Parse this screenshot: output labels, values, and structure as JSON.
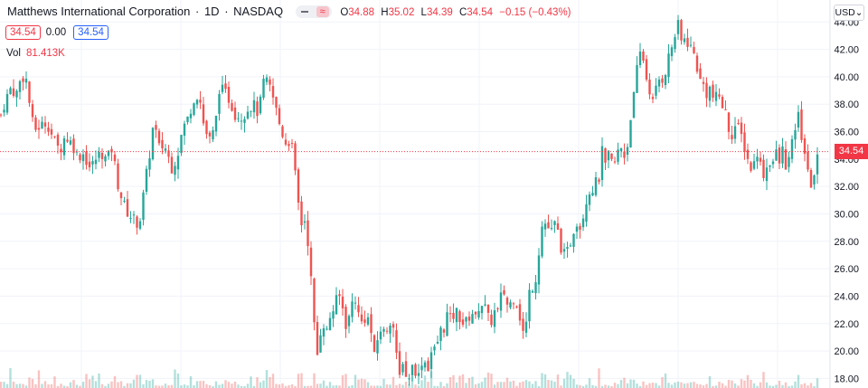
{
  "header": {
    "symbol_title": "Matthews International Corporation",
    "interval": "1D",
    "exchange": "NASDAQ",
    "separator": "·",
    "ohlc": {
      "open_label": "O",
      "open": "34.88",
      "high_label": "H",
      "high": "35.02",
      "low_label": "L",
      "low": "34.39",
      "close_label": "C",
      "close": "34.54",
      "change": "−0.15 (−0.43%)"
    },
    "sell_price": "34.54",
    "spread": "0.00",
    "buy_price": "34.54",
    "volume_label": "Vol",
    "volume_value": "81.413K",
    "currency": "USD"
  },
  "colors": {
    "up": "#26a69a",
    "down": "#ef5350",
    "last_price": "#f23645",
    "grid": "#f0f3fa",
    "axis_text": "#131722"
  },
  "chart_data": {
    "type": "candlestick",
    "title": "Matthews International Corporation · 1D · NASDAQ",
    "y_axis_ticks": [
      "18.00",
      "20.00",
      "22.00",
      "24.00",
      "26.00",
      "28.00",
      "30.00",
      "32.00",
      "34.00",
      "36.00",
      "38.00",
      "40.00",
      "42.00",
      "44.00"
    ],
    "ylim": [
      17.3,
      45.6
    ],
    "last_price": 34.54,
    "last_price_label": "34.54",
    "grid": true,
    "close_path": [
      [
        0,
        37.0
      ],
      [
        6,
        38.3
      ],
      [
        12,
        39.2
      ],
      [
        18,
        38.7
      ],
      [
        24,
        40.1
      ],
      [
        30,
        39.7
      ],
      [
        34,
        37.2
      ],
      [
        38,
        36.1
      ],
      [
        44,
        36.4
      ],
      [
        52,
        36.7
      ],
      [
        60,
        35.3
      ],
      [
        66,
        34.6
      ],
      [
        72,
        35.7
      ],
      [
        80,
        35.1
      ],
      [
        86,
        34.2
      ],
      [
        92,
        34.4
      ],
      [
        100,
        33.3
      ],
      [
        106,
        34.0
      ],
      [
        112,
        34.5
      ],
      [
        118,
        33.9
      ],
      [
        124,
        34.8
      ],
      [
        130,
        32.3
      ],
      [
        136,
        30.8
      ],
      [
        142,
        30.0
      ],
      [
        148,
        29.6
      ],
      [
        154,
        29.2
      ],
      [
        160,
        32.0
      ],
      [
        166,
        34.6
      ],
      [
        170,
        36.7
      ],
      [
        176,
        34.8
      ],
      [
        182,
        35.0
      ],
      [
        190,
        33.4
      ],
      [
        196,
        34.2
      ],
      [
        202,
        36.2
      ],
      [
        208,
        37.0
      ],
      [
        214,
        38.4
      ],
      [
        220,
        38.8
      ],
      [
        226,
        36.2
      ],
      [
        232,
        35.4
      ],
      [
        238,
        36.2
      ],
      [
        242,
        39.2
      ],
      [
        248,
        38.9
      ],
      [
        254,
        38.3
      ],
      [
        260,
        37.3
      ],
      [
        268,
        37.1
      ],
      [
        274,
        37.7
      ],
      [
        280,
        38.0
      ],
      [
        286,
        37.3
      ],
      [
        292,
        39.8
      ],
      [
        298,
        39.3
      ],
      [
        304,
        38.0
      ],
      [
        310,
        36.3
      ],
      [
        316,
        35.2
      ],
      [
        322,
        35.4
      ],
      [
        326,
        33.1
      ],
      [
        330,
        30.7
      ],
      [
        334,
        29.1
      ],
      [
        338,
        29.7
      ],
      [
        342,
        27.0
      ],
      [
        346,
        23.4
      ],
      [
        350,
        19.2
      ],
      [
        354,
        21.4
      ],
      [
        358,
        22.0
      ],
      [
        362,
        21.3
      ],
      [
        366,
        22.9
      ],
      [
        370,
        23.1
      ],
      [
        374,
        24.2
      ],
      [
        378,
        23.5
      ],
      [
        382,
        21.9
      ],
      [
        386,
        22.4
      ],
      [
        390,
        23.7
      ],
      [
        394,
        23.9
      ],
      [
        398,
        21.9
      ],
      [
        402,
        22.3
      ],
      [
        406,
        22.6
      ],
      [
        410,
        21.6
      ],
      [
        414,
        19.5
      ],
      [
        418,
        21.0
      ],
      [
        422,
        21.8
      ],
      [
        426,
        21.1
      ],
      [
        430,
        22.2
      ],
      [
        434,
        22.4
      ],
      [
        438,
        19.7
      ],
      [
        442,
        18.1
      ],
      [
        446,
        19.6
      ],
      [
        450,
        17.6
      ],
      [
        454,
        18.6
      ],
      [
        458,
        19.1
      ],
      [
        462,
        17.8
      ],
      [
        466,
        19.3
      ],
      [
        470,
        19.2
      ],
      [
        474,
        18.8
      ],
      [
        478,
        20.3
      ],
      [
        482,
        19.9
      ],
      [
        486,
        21.5
      ],
      [
        490,
        21.4
      ],
      [
        494,
        22.7
      ],
      [
        498,
        22.3
      ],
      [
        502,
        22.6
      ],
      [
        506,
        22.9
      ],
      [
        510,
        22.2
      ],
      [
        514,
        21.9
      ],
      [
        518,
        22.4
      ],
      [
        522,
        22.9
      ],
      [
        526,
        22.3
      ],
      [
        530,
        23.4
      ],
      [
        534,
        23.5
      ],
      [
        538,
        22.9
      ],
      [
        542,
        21.8
      ],
      [
        546,
        22.9
      ],
      [
        550,
        22.7
      ],
      [
        554,
        23.9
      ],
      [
        558,
        24.3
      ],
      [
        562,
        23.1
      ],
      [
        566,
        23.7
      ],
      [
        570,
        24.0
      ],
      [
        574,
        22.9
      ],
      [
        578,
        21.3
      ],
      [
        582,
        22.0
      ],
      [
        586,
        24.6
      ],
      [
        590,
        24.8
      ],
      [
        594,
        25.7
      ],
      [
        598,
        28.9
      ],
      [
        602,
        29.4
      ],
      [
        606,
        29.0
      ],
      [
        610,
        28.7
      ],
      [
        614,
        29.3
      ],
      [
        618,
        28.4
      ],
      [
        622,
        27.1
      ],
      [
        626,
        26.9
      ],
      [
        630,
        27.7
      ],
      [
        634,
        28.8
      ],
      [
        638,
        29.5
      ],
      [
        642,
        29.0
      ],
      [
        646,
        30.3
      ],
      [
        650,
        31.6
      ],
      [
        654,
        31.7
      ],
      [
        658,
        32.2
      ],
      [
        662,
        32.4
      ],
      [
        666,
        34.5
      ],
      [
        670,
        33.3
      ],
      [
        674,
        34.5
      ],
      [
        678,
        33.3
      ],
      [
        682,
        34.2
      ],
      [
        686,
        35.0
      ],
      [
        690,
        34.2
      ],
      [
        694,
        35.0
      ],
      [
        698,
        37.5
      ],
      [
        702,
        38.9
      ],
      [
        706,
        41.4
      ],
      [
        710,
        42.0
      ],
      [
        714,
        40.1
      ],
      [
        718,
        39.2
      ],
      [
        722,
        38.1
      ],
      [
        726,
        39.2
      ],
      [
        730,
        40.0
      ],
      [
        734,
        39.8
      ],
      [
        738,
        41.1
      ],
      [
        742,
        42.0
      ],
      [
        746,
        42.9
      ],
      [
        750,
        43.7
      ],
      [
        754,
        42.4
      ],
      [
        758,
        42.9
      ],
      [
        762,
        42.3
      ],
      [
        766,
        42.0
      ],
      [
        770,
        41.0
      ],
      [
        774,
        39.7
      ],
      [
        778,
        39.4
      ],
      [
        782,
        38.7
      ],
      [
        786,
        39.3
      ],
      [
        790,
        38.0
      ],
      [
        794,
        38.9
      ],
      [
        798,
        38.0
      ],
      [
        802,
        37.5
      ],
      [
        806,
        36.2
      ],
      [
        810,
        35.8
      ],
      [
        814,
        36.6
      ],
      [
        818,
        36.0
      ],
      [
        822,
        35.3
      ],
      [
        826,
        34.2
      ],
      [
        830,
        33.3
      ],
      [
        834,
        33.7
      ],
      [
        838,
        34.7
      ],
      [
        842,
        33.2
      ],
      [
        846,
        32.8
      ],
      [
        850,
        34.0
      ],
      [
        854,
        33.6
      ],
      [
        858,
        34.5
      ],
      [
        862,
        33.7
      ],
      [
        866,
        34.8
      ],
      [
        870,
        33.2
      ],
      [
        874,
        34.4
      ],
      [
        878,
        35.6
      ],
      [
        882,
        37.5
      ],
      [
        886,
        35.9
      ],
      [
        890,
        34.5
      ],
      [
        894,
        32.6
      ],
      [
        898,
        32.1
      ],
      [
        902,
        33.4
      ],
      [
        906,
        34.5
      ]
    ]
  }
}
